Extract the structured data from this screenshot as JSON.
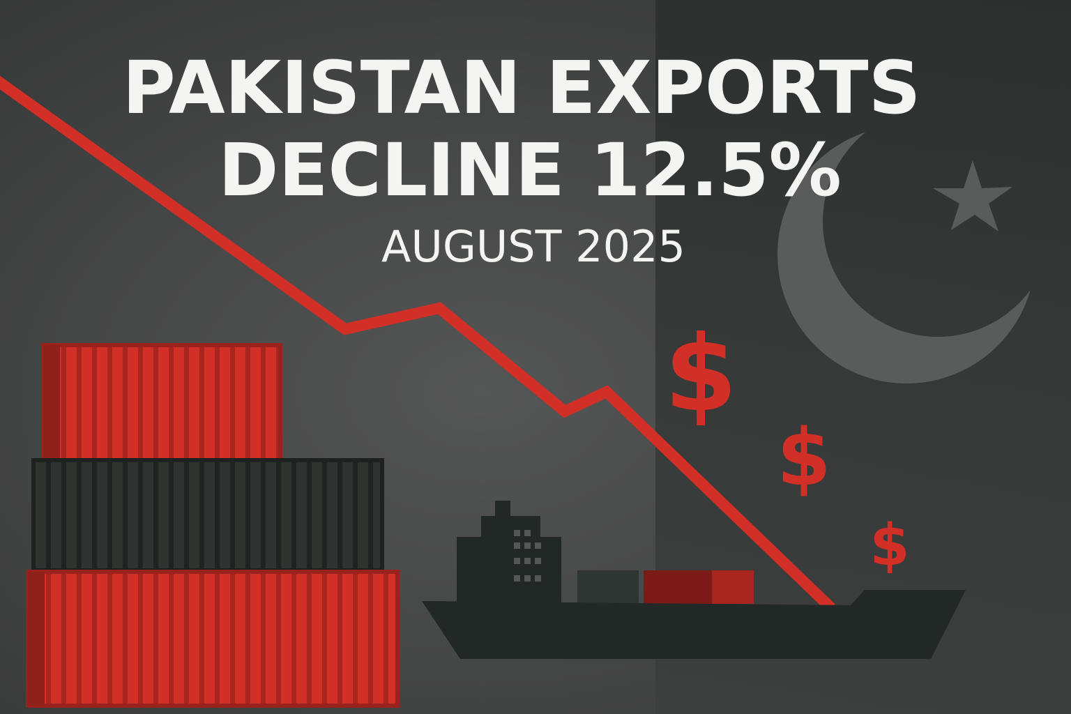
{
  "poster": {
    "title_line1": "PAKISTAN EXPORTS",
    "title_line2": "DECLINE 12.5%",
    "subtitle": "AUGUST 2025",
    "currency_symbol": "$"
  },
  "colors": {
    "background": "#4a4b4b",
    "flag_panel": "#2c312f",
    "accent_red": "#d22f26",
    "dark_red": "#7b1a17",
    "ship": "#222826",
    "text": "#f4f4f2"
  },
  "icons": [
    "trend-down-line",
    "shipping-containers",
    "cargo-ship",
    "crescent",
    "star",
    "dollar-sign"
  ]
}
